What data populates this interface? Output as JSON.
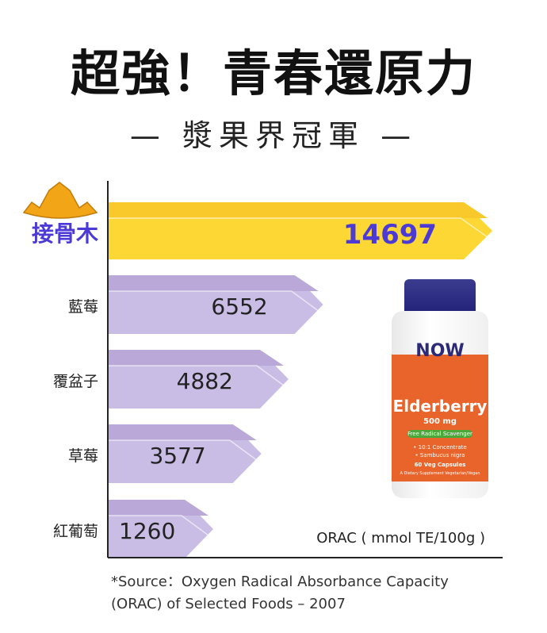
{
  "header": {
    "title": "超強！青春還原力",
    "subtitle": "— 漿果界冠軍 —"
  },
  "chart_data": {
    "type": "bar",
    "orientation": "horizontal",
    "categories": [
      "接骨木",
      "藍莓",
      "覆盆子",
      "草莓",
      "紅葡萄"
    ],
    "values": [
      14697,
      6552,
      4882,
      3577,
      1260
    ],
    "unit_label": "ORAC ( mmol TE/100g )",
    "highlight": "接骨木",
    "colors": {
      "highlight": "#fdd835",
      "highlight_top": "#f9c82a",
      "highlight_text": "#4b3ad6",
      "bar": "#c9bde6",
      "bar_top": "#b9a8d8",
      "text": "#222222"
    }
  },
  "product": {
    "brand": "NOW",
    "name": "Elderberry",
    "dose": "500 mg",
    "tag": "Free Radical Scavenger",
    "lines": [
      "• 10:1 Concentrate",
      "• Sambucus nigra",
      "60 Veg Capsules",
      "A Dietary Supplement   Vegetarian/Vegan"
    ]
  },
  "source": {
    "line1": "*Source：Oxygen Radical Absorbance Capacity",
    "line2": "(ORAC) of Selected Foods – 2007"
  }
}
